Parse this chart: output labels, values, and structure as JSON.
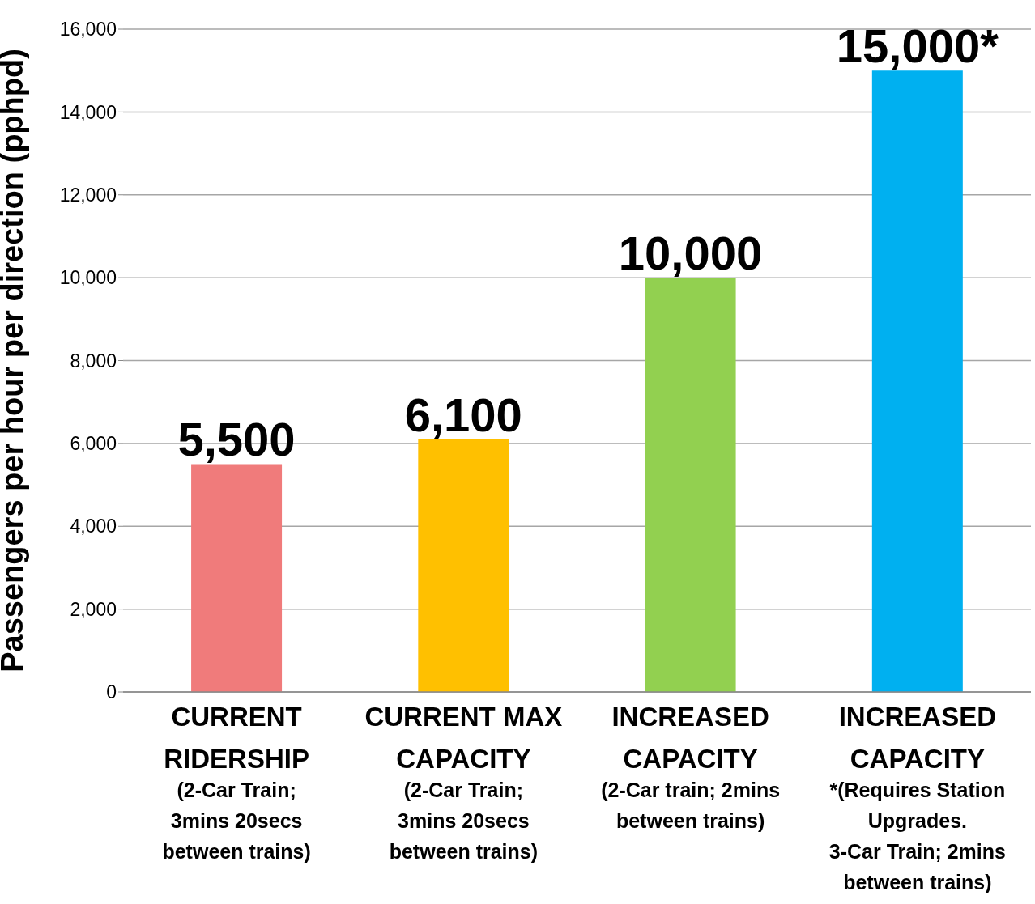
{
  "chart_data": {
    "type": "bar",
    "ylabel": "Passengers per hour per direction (pphpd)",
    "categories": [
      "CURRENT\nRIDERSHIP\n\n(2-Car Train;\n3mins 20secs\nbetween trains)",
      "CURRENT MAX\nCAPACITY\n\n(2-Car Train;\n3mins 20secs\nbetween trains)",
      "INCREASED\nCAPACITY\n\n(2-Car train; 2mins\nbetween trains)",
      "INCREASED\nCAPACITY\n\n*(Requires Station\nUpgrades.\n3-Car Train; 2mins\nbetween trains)"
    ],
    "values": [
      5500,
      6100,
      10000,
      15000
    ],
    "colors": [
      "#f07b7b",
      "#ffc000",
      "#92d050",
      "#00b0f0"
    ],
    "value_labels": [
      "5,500",
      "6,100",
      "10,000",
      "15,000*"
    ],
    "ylim": [
      0,
      16000
    ],
    "yticks": [
      0,
      {
        "value": 2000,
        "label": "2,000"
      },
      {
        "value": 4000,
        "label": "4,000"
      },
      {
        "value": 6000,
        "label": "6,000"
      },
      {
        "value": 8000,
        "label": "8,000"
      },
      {
        "value": 10000,
        "label": "10,000"
      },
      {
        "value": 12000,
        "label": "12,000"
      },
      {
        "value": 14000,
        "label": "14,000"
      },
      {
        "value": 16000,
        "label": "16,000"
      }
    ],
    "grid": "y"
  }
}
